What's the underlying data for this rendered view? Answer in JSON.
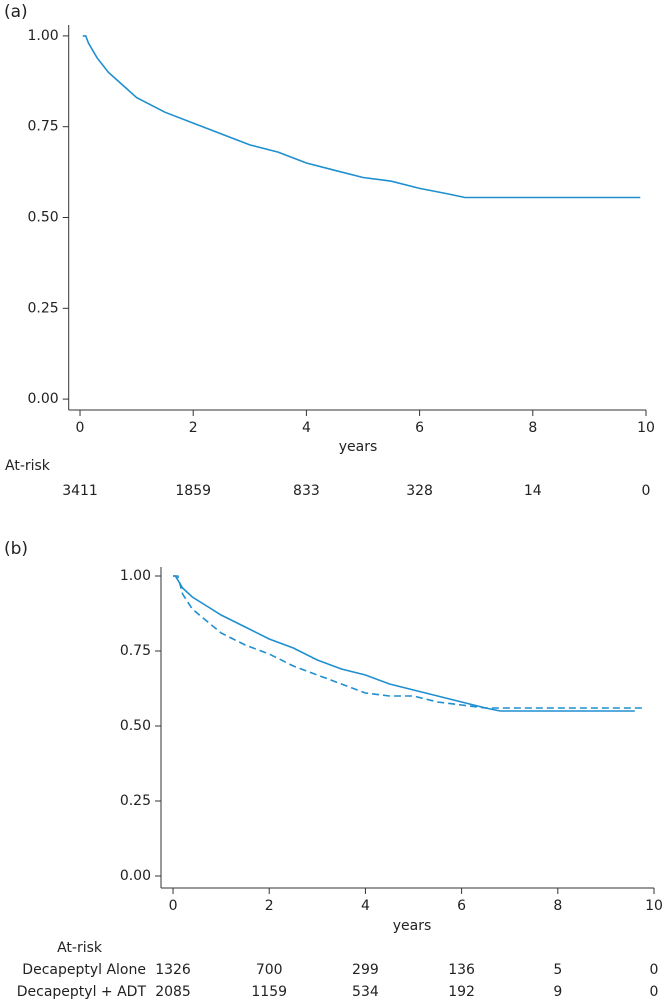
{
  "chart_data": [
    {
      "type": "line",
      "panel_label": "(a)",
      "xlabel": "years",
      "xlim": [
        -0.2,
        10
      ],
      "ylim": [
        -0.03,
        1.03
      ],
      "xticks": [
        0,
        2,
        4,
        6,
        8,
        10
      ],
      "yticks": [
        {
          "value": 0,
          "label": "0.00"
        },
        {
          "value": 0.25,
          "label": "0.25"
        },
        {
          "value": 0.5,
          "label": "0.50"
        },
        {
          "value": 0.75,
          "label": "0.75"
        },
        {
          "value": 1,
          "label": "1.00"
        }
      ],
      "series": [
        {
          "color": "#1f8fd0",
          "dash": false,
          "x": [
            0.05,
            0.1,
            0.15,
            0.3,
            0.5,
            1,
            1.5,
            2,
            2.5,
            3,
            3.5,
            4,
            4.5,
            5,
            5.5,
            6,
            6.5,
            6.8,
            9.9
          ],
          "values": [
            1.0,
            1.0,
            0.98,
            0.94,
            0.9,
            0.83,
            0.79,
            0.76,
            0.73,
            0.7,
            0.68,
            0.65,
            0.63,
            0.61,
            0.6,
            0.58,
            0.565,
            0.555,
            0.555
          ]
        }
      ],
      "at_risk": {
        "label": "At-risk",
        "rows": [
          {
            "counts": [
              3411,
              1859,
              833,
              328,
              14,
              0
            ]
          }
        ]
      }
    },
    {
      "type": "line",
      "panel_label": "(b)",
      "xlabel": "years",
      "xlim": [
        -0.25,
        10
      ],
      "ylim": [
        -0.04,
        1.03
      ],
      "xticks": [
        0,
        2,
        4,
        6,
        8,
        10
      ],
      "yticks": [
        {
          "value": 0,
          "label": "0.00"
        },
        {
          "value": 0.25,
          "label": "0.25"
        },
        {
          "value": 0.5,
          "label": "0.50"
        },
        {
          "value": 0.75,
          "label": "0.75"
        },
        {
          "value": 1,
          "label": "1.00"
        }
      ],
      "series": [
        {
          "color": "#1f8fd0",
          "dash": false,
          "x": [
            0,
            0.05,
            0.2,
            0.4,
            0.7,
            1,
            1.5,
            2,
            2.5,
            3,
            3.5,
            4,
            4.5,
            5,
            5.5,
            6,
            6.5,
            6.8,
            9.6
          ],
          "values": [
            1.0,
            1.0,
            0.96,
            0.93,
            0.9,
            0.87,
            0.83,
            0.79,
            0.76,
            0.72,
            0.69,
            0.67,
            0.64,
            0.62,
            0.6,
            0.58,
            0.56,
            0.55,
            0.55
          ]
        },
        {
          "color": "#1f8fd0",
          "dash": true,
          "x": [
            0,
            0.1,
            0.2,
            0.4,
            0.7,
            1,
            1.5,
            2,
            2.5,
            3,
            3.5,
            4,
            4.5,
            5,
            5.5,
            6,
            6.5,
            6.8,
            9.8
          ],
          "values": [
            1.0,
            1.0,
            0.94,
            0.89,
            0.85,
            0.81,
            0.77,
            0.74,
            0.7,
            0.67,
            0.64,
            0.61,
            0.6,
            0.6,
            0.58,
            0.57,
            0.56,
            0.56,
            0.56
          ]
        }
      ],
      "at_risk": {
        "label": "At-risk",
        "rows": [
          {
            "name": "Decapeptyl Alone",
            "counts": [
              1326,
              700,
              299,
              136,
              5,
              0
            ]
          },
          {
            "name": "Decapeptyl + ADT",
            "counts": [
              2085,
              1159,
              534,
              192,
              9,
              0
            ]
          }
        ]
      }
    }
  ]
}
